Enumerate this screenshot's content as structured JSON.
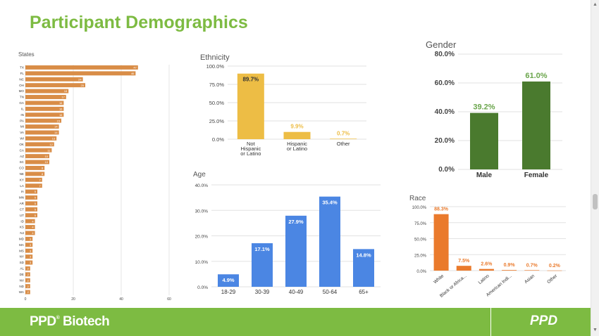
{
  "slide": {
    "title": "Participant Demographics"
  },
  "footer": {
    "brand": "PPD",
    "brand_mark": "®",
    "brand_suffix": " Biotech",
    "logo": "PPD"
  },
  "scrollbar": {
    "up": "▲",
    "down": "▼"
  },
  "colors": {
    "green": "#7dbb42",
    "states_bar": "#d98d47",
    "ethnicity_bar": "#edbd45",
    "gender_bar": "#4a7a2e",
    "age_bar": "#4b86e3",
    "race_bar": "#ea7a2c"
  },
  "chart_data": [
    {
      "id": "states",
      "type": "bar",
      "orientation": "horizontal",
      "title": "States",
      "categories": [
        "TX",
        "FL",
        "NC",
        "OH",
        "MO",
        "TN",
        "GA",
        "IL",
        "IN",
        "PA",
        "MI",
        "VA",
        "WI",
        "OK",
        "CA",
        "AZ",
        "SC",
        "CO",
        "NE",
        "KY",
        "LA",
        "IA",
        "MN",
        "AR",
        "CT",
        "UT",
        "ID",
        "KS",
        "NJ",
        "MD",
        "MA",
        "MS",
        "NY",
        "SD",
        "AL",
        "DE",
        "NV",
        "ND",
        "WA"
      ],
      "values": [
        47,
        46,
        24,
        25,
        18,
        17,
        16,
        16,
        16,
        15,
        14,
        14,
        13,
        12,
        11,
        10,
        10,
        8,
        8,
        7,
        7,
        5,
        5,
        5,
        5,
        5,
        4,
        4,
        4,
        3,
        3,
        3,
        3,
        3,
        2,
        2,
        2,
        2,
        2
      ],
      "xticks": [
        0,
        20,
        40,
        60
      ],
      "xlim": [
        0,
        60
      ]
    },
    {
      "id": "ethnicity",
      "type": "bar",
      "title": "Ethnicity",
      "categories": [
        [
          "Not",
          "Hispanic",
          "or Latino"
        ],
        [
          "Hispanic",
          "or Latino"
        ],
        [
          "Other"
        ]
      ],
      "values": [
        89.7,
        9.9,
        0.7
      ],
      "labels": [
        "89.7%",
        "9.9%",
        "0.7%"
      ],
      "yticks": [
        "100.0%",
        "75.0%",
        "50.0%",
        "25.0%",
        "0.0%"
      ],
      "ylim": [
        0,
        100
      ]
    },
    {
      "id": "gender",
      "type": "bar",
      "title": "Gender",
      "categories": [
        "Male",
        "Female"
      ],
      "values": [
        39.2,
        61.0
      ],
      "labels": [
        "39.2%",
        "61.0%"
      ],
      "yticks": [
        "80.0%",
        "60.0%",
        "40.0%",
        "20.0%",
        "0.0%"
      ],
      "ylim": [
        0,
        80
      ]
    },
    {
      "id": "age",
      "type": "bar",
      "title": "Age",
      "categories": [
        "18-29",
        "30-39",
        "40-49",
        "50-64",
        "65+"
      ],
      "values": [
        4.9,
        17.1,
        27.9,
        35.4,
        14.8
      ],
      "labels": [
        "4.9%",
        "17.1%",
        "27.9%",
        "35.4%",
        "14.8%"
      ],
      "yticks": [
        "40.0%",
        "30.0%",
        "20.0%",
        "10.0%",
        "0.0%"
      ],
      "ylim": [
        0,
        40
      ]
    },
    {
      "id": "race",
      "type": "bar",
      "title": "Race",
      "categories": [
        "White",
        "Black or Africa...",
        "Latino",
        "American Indi...",
        "Asian",
        "Other"
      ],
      "values": [
        88.3,
        7.5,
        2.6,
        0.9,
        0.7,
        0.2
      ],
      "labels": [
        "88.3%",
        "7.5%",
        "2.6%",
        "0.9%",
        "0.7%",
        "0.2%"
      ],
      "yticks": [
        "100.0%",
        "75.0%",
        "50.0%",
        "25.0%",
        "0.0%"
      ],
      "ylim": [
        0,
        100
      ]
    }
  ]
}
